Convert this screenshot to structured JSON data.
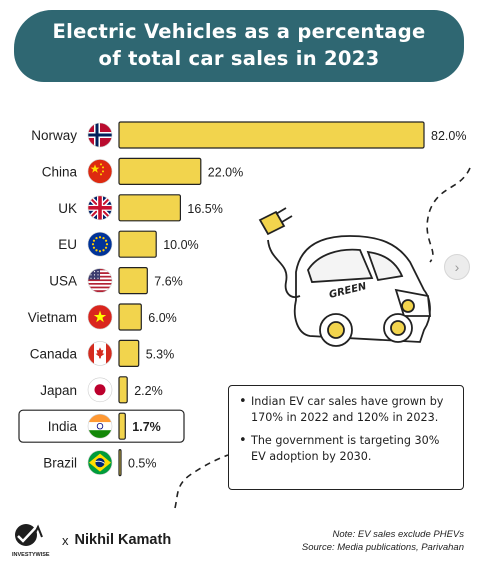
{
  "title": {
    "line1": "Electric Vehicles as a percentage",
    "line2": "of total car sales in 2023"
  },
  "chart_data": {
    "type": "bar",
    "orientation": "horizontal",
    "categories": [
      "Norway",
      "China",
      "UK",
      "EU",
      "USA",
      "Vietnam",
      "Canada",
      "Japan",
      "India",
      "Brazil"
    ],
    "values": [
      82.0,
      22.0,
      16.5,
      10.0,
      7.6,
      6.0,
      5.3,
      2.2,
      1.7,
      0.5
    ],
    "value_labels": [
      "82.0%",
      "22.0%",
      "16.5%",
      "10.0%",
      "7.6%",
      "6.0%",
      "5.3%",
      "2.2%",
      "1.7%",
      "0.5%"
    ],
    "highlight": "India",
    "bar_color": "#f2d44d",
    "highlight_color": "#ffffff",
    "flag_icons": [
      "norway-flag",
      "china-flag",
      "uk-flag",
      "eu-flag",
      "usa-flag",
      "vietnam-flag",
      "canada-flag",
      "japan-flag",
      "india-flag",
      "brazil-flag"
    ],
    "xlim": [
      0,
      82.0
    ],
    "grid": false,
    "legend": "none"
  },
  "illustration": {
    "car_text": "GREEN"
  },
  "notes": {
    "point1": "Indian EV car sales have grown by 170% in 2022 and 120% in 2023.",
    "point2": "The government is targeting 30% EV adoption by 2030."
  },
  "footer": {
    "logo_text": "INVESTYWISE",
    "x_mark": "x",
    "author": "Nikhil Kamath",
    "note": "Note: EV sales exclude PHEVs",
    "source": "Source: Media publications, Parivahan"
  },
  "colors": {
    "banner": "#2f6772",
    "bar": "#f2d44d"
  }
}
